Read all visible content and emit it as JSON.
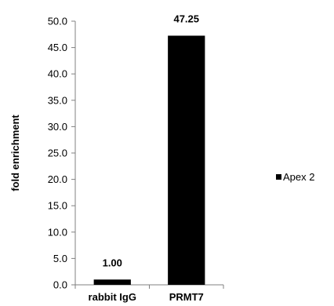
{
  "chart_data": {
    "type": "bar",
    "categories": [
      "rabbit IgG",
      "PRMT7"
    ],
    "series": [
      {
        "name": "Apex 2",
        "values": [
          1.0,
          47.25
        ],
        "color": "#000000"
      }
    ],
    "data_labels": [
      "1.00",
      "47.25"
    ],
    "ylabel": "fold enrichment",
    "xlabel": "",
    "title": "",
    "ylim": [
      0,
      50
    ],
    "yticks": [
      "0.0",
      "5.0",
      "10.0",
      "15.0",
      "20.0",
      "25.0",
      "30.0",
      "35.0",
      "40.0",
      "45.0",
      "50.0"
    ],
    "grid": false,
    "legend_position": "right"
  }
}
